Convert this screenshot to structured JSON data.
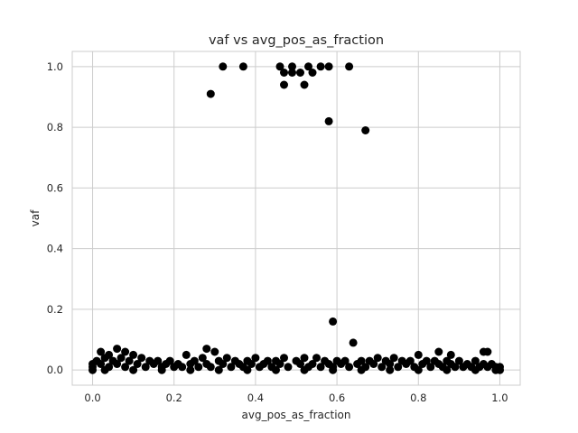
{
  "chart_data": {
    "type": "scatter",
    "title": "vaf vs avg_pos_as_fraction",
    "xlabel": "avg_pos_as_fraction",
    "ylabel": "vaf",
    "xlim": [
      -0.05,
      1.05
    ],
    "ylim": [
      -0.05,
      1.05
    ],
    "xticks": [
      "0.0",
      "0.2",
      "0.4",
      "0.6",
      "0.8",
      "1.0"
    ],
    "yticks": [
      "0.0",
      "0.2",
      "0.4",
      "0.6",
      "0.8",
      "1.0"
    ],
    "grid": true,
    "marker_color": "#000000",
    "points": [
      [
        0.29,
        0.91
      ],
      [
        0.32,
        1.0
      ],
      [
        0.37,
        1.0
      ],
      [
        0.46,
        1.0
      ],
      [
        0.47,
        0.98
      ],
      [
        0.47,
        0.94
      ],
      [
        0.49,
        1.0
      ],
      [
        0.49,
        0.98
      ],
      [
        0.51,
        0.98
      ],
      [
        0.52,
        0.94
      ],
      [
        0.53,
        1.0
      ],
      [
        0.54,
        0.98
      ],
      [
        0.56,
        1.0
      ],
      [
        0.58,
        1.0
      ],
      [
        0.58,
        0.82
      ],
      [
        0.63,
        1.0
      ],
      [
        0.67,
        0.79
      ],
      [
        0.59,
        0.16
      ],
      [
        0.64,
        0.09
      ],
      [
        0.02,
        0.06
      ],
      [
        0.04,
        0.05
      ],
      [
        0.06,
        0.07
      ],
      [
        0.08,
        0.06
      ],
      [
        0.1,
        0.05
      ],
      [
        0.23,
        0.05
      ],
      [
        0.28,
        0.07
      ],
      [
        0.3,
        0.06
      ],
      [
        0.85,
        0.06
      ],
      [
        0.88,
        0.05
      ],
      [
        0.96,
        0.06
      ],
      [
        0.97,
        0.06
      ],
      [
        0.8,
        0.05
      ],
      [
        0.7,
        0.04
      ],
      [
        0.33,
        0.04
      ],
      [
        0.47,
        0.04
      ],
      [
        0.52,
        0.04
      ],
      [
        0.55,
        0.04
      ],
      [
        0.01,
        0.03
      ],
      [
        0.03,
        0.04
      ],
      [
        0.05,
        0.03
      ],
      [
        0.07,
        0.04
      ],
      [
        0.09,
        0.03
      ],
      [
        0.12,
        0.04
      ],
      [
        0.14,
        0.03
      ],
      [
        0.16,
        0.03
      ],
      [
        0.19,
        0.03
      ],
      [
        0.25,
        0.03
      ],
      [
        0.27,
        0.04
      ],
      [
        0.31,
        0.03
      ],
      [
        0.35,
        0.03
      ],
      [
        0.38,
        0.03
      ],
      [
        0.4,
        0.04
      ],
      [
        0.43,
        0.03
      ],
      [
        0.45,
        0.03
      ],
      [
        0.5,
        0.03
      ],
      [
        0.57,
        0.03
      ],
      [
        0.6,
        0.03
      ],
      [
        0.62,
        0.03
      ],
      [
        0.66,
        0.03
      ],
      [
        0.68,
        0.03
      ],
      [
        0.72,
        0.03
      ],
      [
        0.74,
        0.04
      ],
      [
        0.76,
        0.03
      ],
      [
        0.78,
        0.03
      ],
      [
        0.82,
        0.03
      ],
      [
        0.84,
        0.03
      ],
      [
        0.87,
        0.03
      ],
      [
        0.9,
        0.03
      ],
      [
        0.92,
        0.02
      ],
      [
        0.94,
        0.03
      ],
      [
        0.98,
        0.02
      ],
      [
        0.99,
        0.01
      ],
      [
        0.0,
        0.02
      ],
      [
        0.0,
        0.01
      ],
      [
        0.0,
        0.0
      ],
      [
        0.02,
        0.02
      ],
      [
        0.04,
        0.01
      ],
      [
        0.06,
        0.02
      ],
      [
        0.08,
        0.01
      ],
      [
        0.11,
        0.02
      ],
      [
        0.13,
        0.01
      ],
      [
        0.15,
        0.02
      ],
      [
        0.17,
        0.01
      ],
      [
        0.18,
        0.02
      ],
      [
        0.2,
        0.01
      ],
      [
        0.21,
        0.02
      ],
      [
        0.22,
        0.01
      ],
      [
        0.24,
        0.02
      ],
      [
        0.26,
        0.01
      ],
      [
        0.28,
        0.02
      ],
      [
        0.29,
        0.01
      ],
      [
        0.32,
        0.02
      ],
      [
        0.34,
        0.01
      ],
      [
        0.36,
        0.02
      ],
      [
        0.37,
        0.01
      ],
      [
        0.39,
        0.02
      ],
      [
        0.41,
        0.01
      ],
      [
        0.42,
        0.02
      ],
      [
        0.44,
        0.01
      ],
      [
        0.46,
        0.02
      ],
      [
        0.48,
        0.01
      ],
      [
        0.51,
        0.02
      ],
      [
        0.53,
        0.01
      ],
      [
        0.54,
        0.02
      ],
      [
        0.56,
        0.01
      ],
      [
        0.58,
        0.02
      ],
      [
        0.59,
        0.01
      ],
      [
        0.61,
        0.02
      ],
      [
        0.63,
        0.01
      ],
      [
        0.65,
        0.02
      ],
      [
        0.67,
        0.01
      ],
      [
        0.69,
        0.02
      ],
      [
        0.71,
        0.01
      ],
      [
        0.73,
        0.02
      ],
      [
        0.75,
        0.01
      ],
      [
        0.77,
        0.02
      ],
      [
        0.79,
        0.01
      ],
      [
        0.81,
        0.02
      ],
      [
        0.83,
        0.01
      ],
      [
        0.85,
        0.02
      ],
      [
        0.86,
        0.01
      ],
      [
        0.88,
        0.02
      ],
      [
        0.89,
        0.01
      ],
      [
        0.91,
        0.01
      ],
      [
        0.93,
        0.01
      ],
      [
        0.95,
        0.01
      ],
      [
        0.96,
        0.02
      ],
      [
        0.97,
        0.01
      ],
      [
        0.99,
        0.0
      ],
      [
        1.0,
        0.01
      ],
      [
        1.0,
        0.0
      ],
      [
        0.03,
        0.0
      ],
      [
        0.1,
        0.0
      ],
      [
        0.17,
        0.0
      ],
      [
        0.24,
        0.0
      ],
      [
        0.31,
        0.0
      ],
      [
        0.38,
        0.0
      ],
      [
        0.45,
        0.0
      ],
      [
        0.52,
        0.0
      ],
      [
        0.59,
        0.0
      ],
      [
        0.66,
        0.0
      ],
      [
        0.73,
        0.0
      ],
      [
        0.8,
        0.0
      ],
      [
        0.87,
        0.0
      ],
      [
        0.94,
        0.0
      ]
    ]
  }
}
